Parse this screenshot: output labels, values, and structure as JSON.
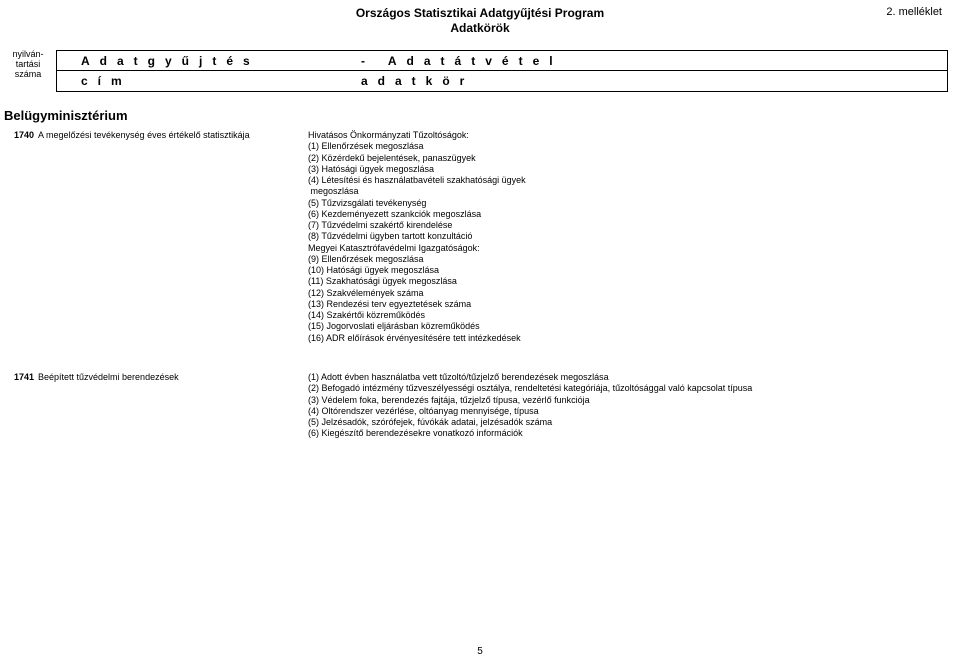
{
  "header": {
    "title_line1": "Országos Statisztikai Adatgyűjtési Program",
    "title_line2": "Adatkörök",
    "annex": "2. melléklet"
  },
  "column_labels": {
    "left": "nyilván-\ntartási\nszáma",
    "row1a": "Adatgyűjtés",
    "row1b": "- Adatátvétel",
    "row2a": "cím",
    "row2b": "adatkör"
  },
  "section": "Belügyminisztérium",
  "entries": [
    {
      "num": "1740",
      "title": "A megelőzési tevékenység éves értékelő statisztikája",
      "details": [
        "Hivatásos Önkormányzati Tűzoltóságok:",
        "(1) Ellenőrzések megoszlása",
        "(2) Közérdekű bejelentések, panaszügyek",
        "(3) Hatósági ügyek megoszlása",
        "(4) Létesítési és használatbavételi szakhatósági ügyek",
        " megoszlása",
        "(5) Tűzvizsgálati tevékenység",
        "(6) Kezdeményezett szankciók megoszlása",
        "(7) Tűzvédelmi szakértő kirendelése",
        "(8) Tűzvédelmi ügyben tartott konzultáció",
        "Megyei Katasztrófavédelmi Igazgatóságok:",
        "(9) Ellenőrzések megoszlása",
        "(10) Hatósági ügyek megoszlása",
        "(11) Szakhatósági ügyek megoszlása",
        "(12) Szakvélemények száma",
        "(13) Rendezési terv egyeztetések száma",
        "(14) Szakértői közreműködés",
        "(15) Jogorvoslati eljárásban közreműködés",
        "(16) ADR előírások érvényesítésére tett intézkedések"
      ]
    },
    {
      "num": "1741",
      "title": "Beépített tűzvédelmi berendezések",
      "details": [
        "(1) Adott évben használatba vett tűzoltó/tűzjelző berendezések megoszlása",
        "(2) Befogadó intézmény tűzveszélyességi osztálya, rendeltetési kategóriája, tűzoltósággal való kapcsolat típusa",
        "(3) Védelem foka, berendezés fajtája, tűzjelző típusa, vezérlő funkciója",
        "(4) Oltórendszer vezérlése, oltóanyag mennyisége, típusa",
        "(5) Jelzésadók, szórófejek, fúvókák adatai, jelzésadók száma",
        "(6) Kiegészítő berendezésekre vonatkozó információk"
      ]
    }
  ],
  "page_number": "5"
}
